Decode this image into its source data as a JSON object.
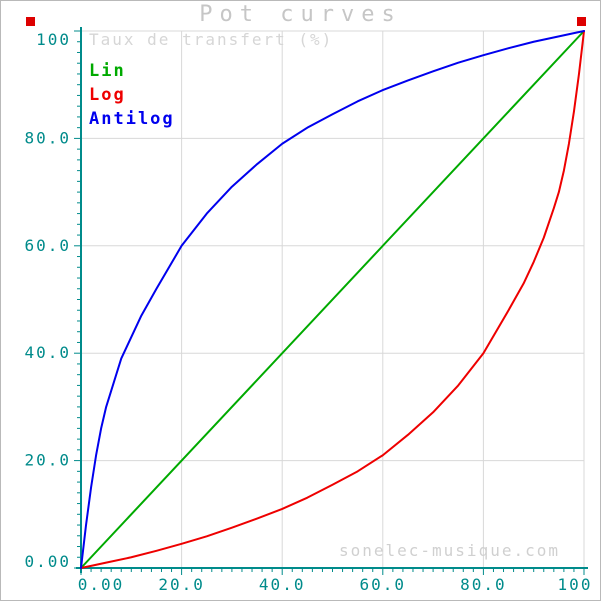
{
  "chart_data": {
    "type": "line",
    "title": "Pot curves",
    "axis_title": "Taux de transfert (%)",
    "watermark": "sonelec-musique.com",
    "xlim": [
      0,
      100
    ],
    "ylim": [
      0,
      100
    ],
    "grid": true,
    "legend_position": "top-left",
    "tick_values": [
      0,
      20,
      40,
      60,
      80,
      100
    ],
    "tick_labels": [
      "0.00",
      "20.0",
      "40.0",
      "60.0",
      "80.0",
      "100"
    ],
    "minor_tick_step": 2,
    "colors": {
      "axis": "#008b8b",
      "grid": "#d8d8d8",
      "title": "#c6c6c6",
      "axis_title": "#d6d6d6",
      "watermark": "#d0d0d0",
      "corner_marker": "#dd0000"
    },
    "series": [
      {
        "name": "Lin",
        "color": "#00aa00",
        "points": [
          [
            0,
            0
          ],
          [
            100,
            100
          ]
        ]
      },
      {
        "name": "Log",
        "color": "#ee0000",
        "points": [
          [
            0,
            0
          ],
          [
            2,
            0.4
          ],
          [
            5,
            1
          ],
          [
            10,
            2
          ],
          [
            15,
            3.2
          ],
          [
            20,
            4.5
          ],
          [
            25,
            5.9
          ],
          [
            30,
            7.5
          ],
          [
            35,
            9.2
          ],
          [
            40,
            11
          ],
          [
            45,
            13.1
          ],
          [
            50,
            15.5
          ],
          [
            55,
            18
          ],
          [
            60,
            21
          ],
          [
            65,
            24.8
          ],
          [
            70,
            29
          ],
          [
            75,
            34
          ],
          [
            80,
            40
          ],
          [
            85,
            48
          ],
          [
            88,
            53
          ],
          [
            90,
            57
          ],
          [
            92,
            61.5
          ],
          [
            94,
            67
          ],
          [
            95,
            70
          ],
          [
            96,
            74
          ],
          [
            97,
            79
          ],
          [
            98,
            85
          ],
          [
            99,
            92
          ],
          [
            100,
            100
          ]
        ]
      },
      {
        "name": "Antilog",
        "color": "#0000ee",
        "points": [
          [
            0,
            0
          ],
          [
            1,
            8
          ],
          [
            2,
            15
          ],
          [
            3,
            21
          ],
          [
            4,
            26
          ],
          [
            5,
            30
          ],
          [
            6,
            33
          ],
          [
            8,
            39
          ],
          [
            10,
            43
          ],
          [
            12,
            47
          ],
          [
            15,
            52
          ],
          [
            20,
            60
          ],
          [
            25,
            66
          ],
          [
            30,
            71
          ],
          [
            35,
            75.2
          ],
          [
            40,
            79
          ],
          [
            45,
            82
          ],
          [
            50,
            84.5
          ],
          [
            55,
            86.9
          ],
          [
            60,
            89
          ],
          [
            65,
            90.8
          ],
          [
            70,
            92.5
          ],
          [
            75,
            94.1
          ],
          [
            80,
            95.5
          ],
          [
            85,
            96.8
          ],
          [
            90,
            98
          ],
          [
            95,
            99
          ],
          [
            98,
            99.6
          ],
          [
            100,
            100
          ]
        ]
      }
    ]
  }
}
